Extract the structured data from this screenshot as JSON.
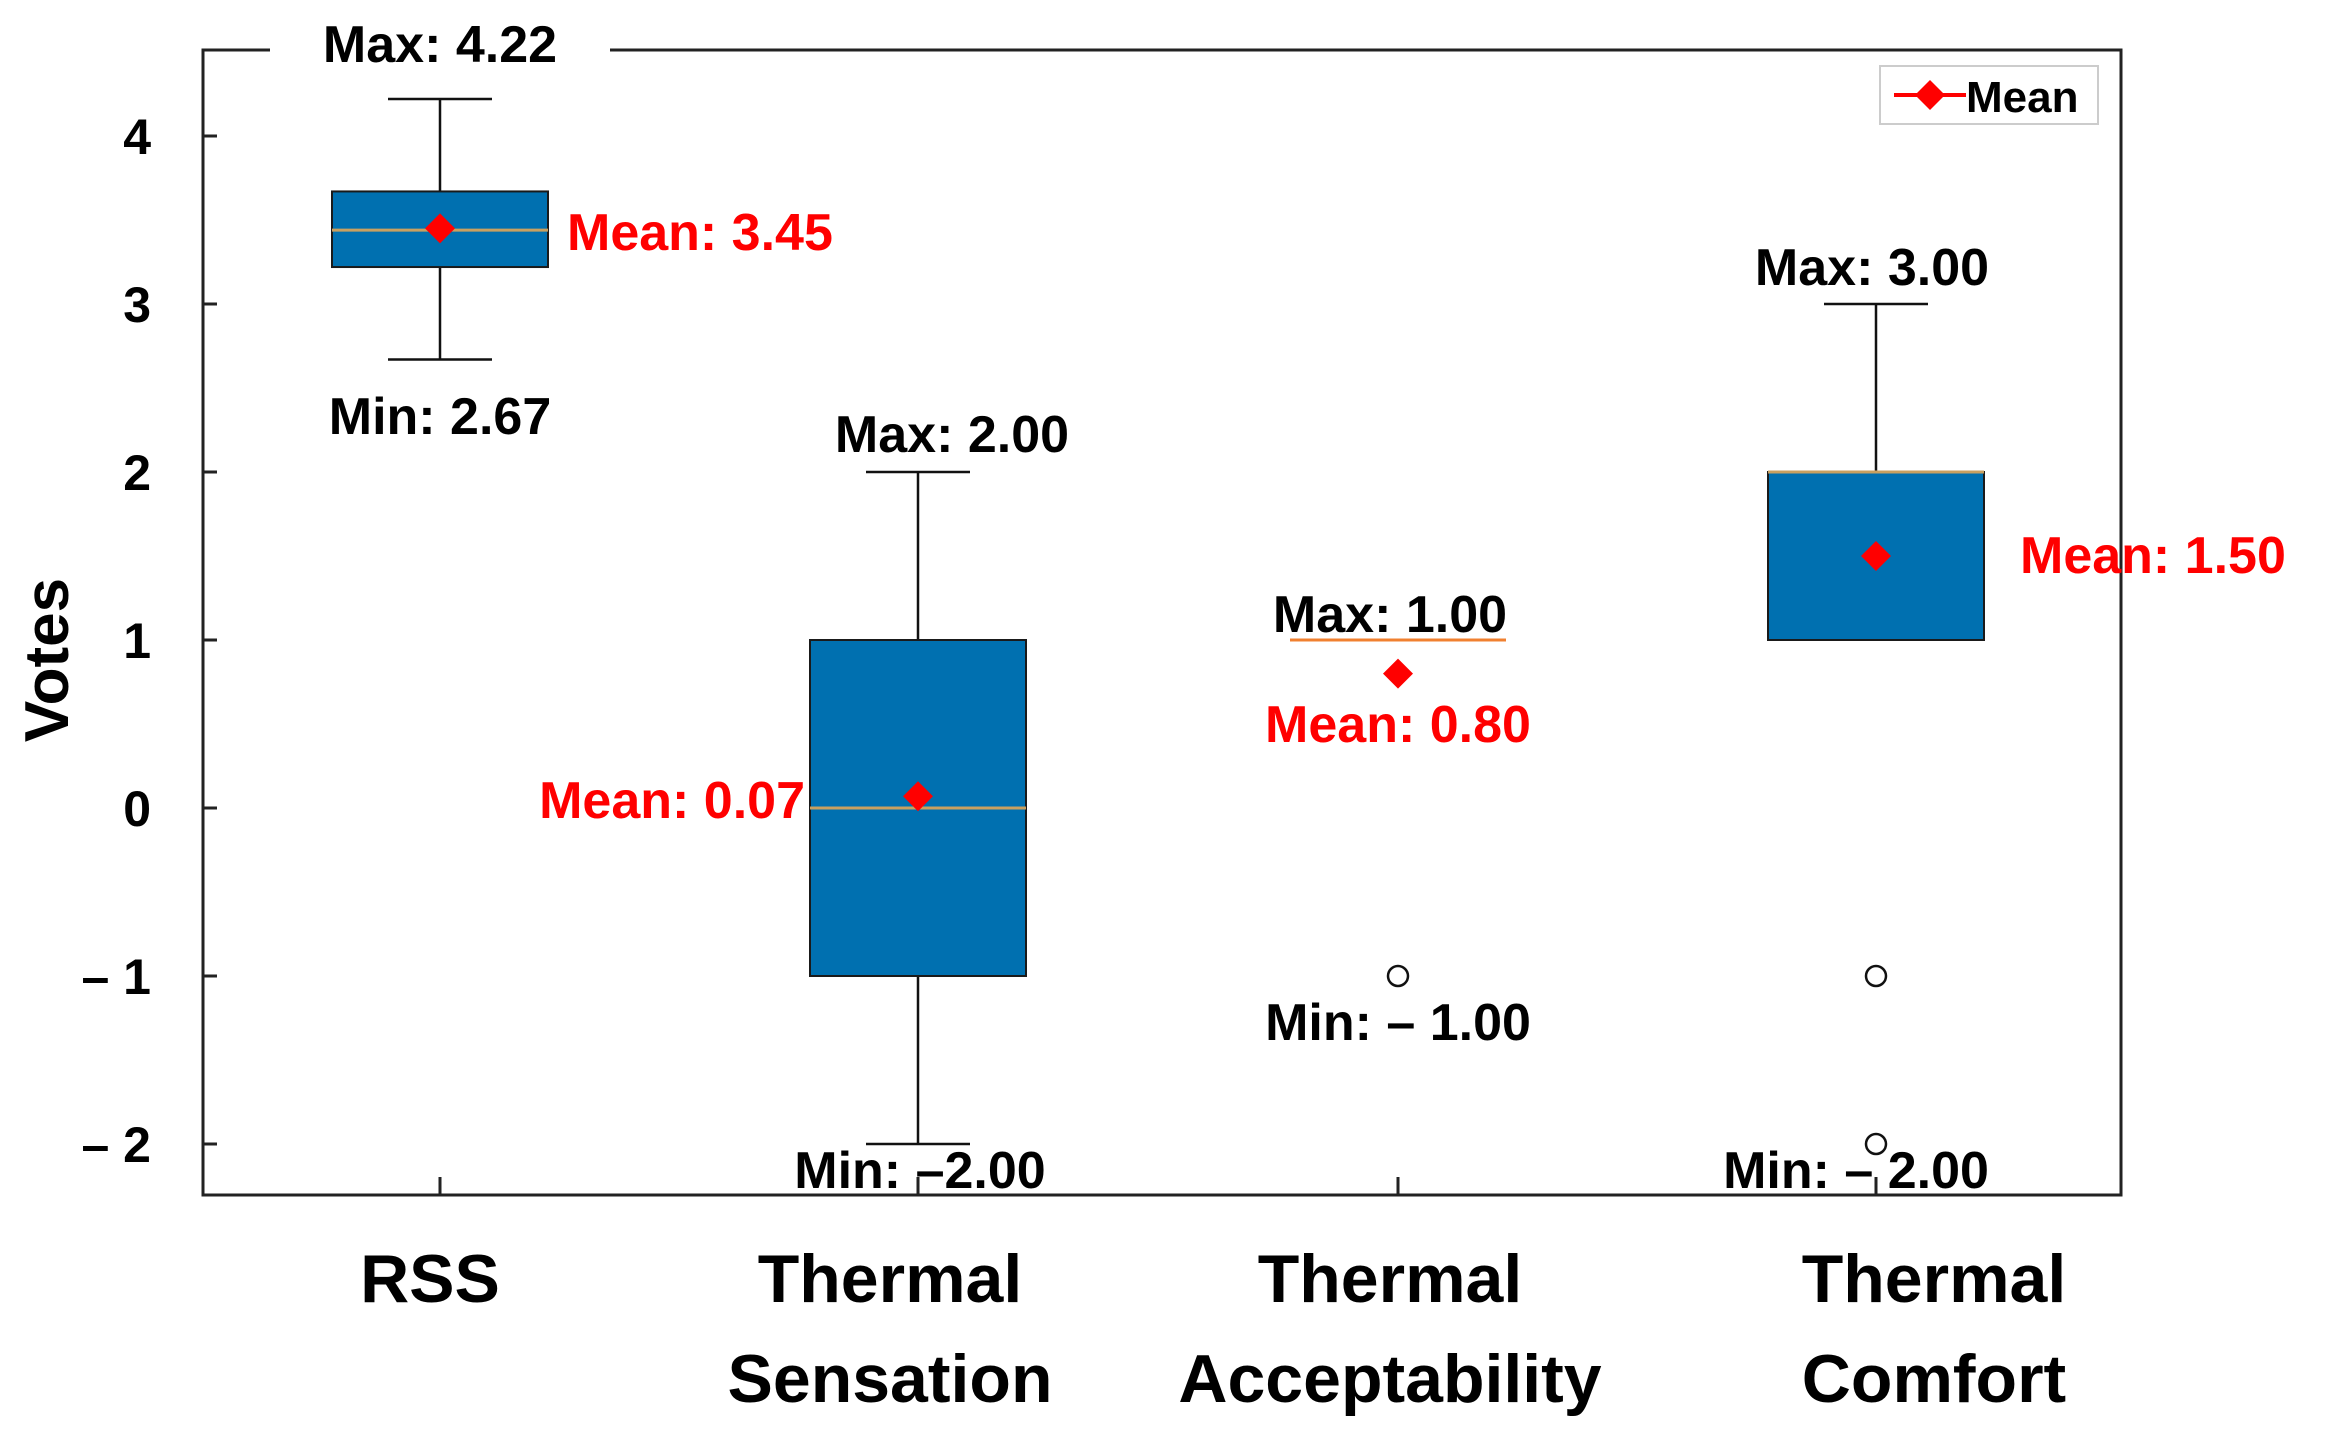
{
  "chart_data": {
    "type": "box",
    "title": "",
    "xlabel": "",
    "ylabel": "Votes",
    "ylim": [
      -2.3,
      4.5
    ],
    "yticks": [
      4,
      3,
      2,
      1,
      0,
      -1,
      -2
    ],
    "ytick_labels": [
      "4",
      "3",
      "2",
      "1",
      "0",
      "– 1",
      "– 2"
    ],
    "legend": {
      "label": "Mean",
      "placement": "top-right"
    },
    "colors": {
      "box": "#0070b0",
      "mean": "#ff0000",
      "median": "#c8a060",
      "text": "#000000"
    },
    "categories": [
      {
        "label_lines": [
          "RSS"
        ],
        "min": 2.67,
        "q1": 3.22,
        "median": 3.44,
        "q3": 3.67,
        "max": 4.22,
        "mean": 3.45,
        "outliers": [],
        "max_label": "Max: 4.22",
        "min_label": "Min: 2.67",
        "mean_label": "Mean: 3.45"
      },
      {
        "label_lines": [
          "Thermal",
          "Sensation"
        ],
        "min": -2.0,
        "q1": -1.0,
        "median": 0.0,
        "q3": 1.0,
        "max": 2.0,
        "mean": 0.07,
        "outliers": [],
        "max_label": "Max: 2.00",
        "min_label": "Min: –2.00",
        "mean_label": "Mean: 0.07"
      },
      {
        "label_lines": [
          "Thermal",
          "Acceptability"
        ],
        "min": 1.0,
        "q1": 1.0,
        "median": 1.0,
        "q3": 1.0,
        "max": 1.0,
        "mean": 0.8,
        "outliers": [
          -1.0
        ],
        "max_label": "Max: 1.00",
        "min_label": "Min: – 1.00",
        "mean_label": "Mean: 0.80"
      },
      {
        "label_lines": [
          "Thermal",
          "Comfort"
        ],
        "min": 1.0,
        "q1": 1.0,
        "median": 2.0,
        "q3": 2.0,
        "max": 3.0,
        "mean": 1.5,
        "outliers": [
          -1.0,
          -2.0
        ],
        "max_label": "Max: 3.00",
        "min_label": "Min: – 2.00",
        "mean_label": "Mean: 1.50"
      }
    ]
  }
}
